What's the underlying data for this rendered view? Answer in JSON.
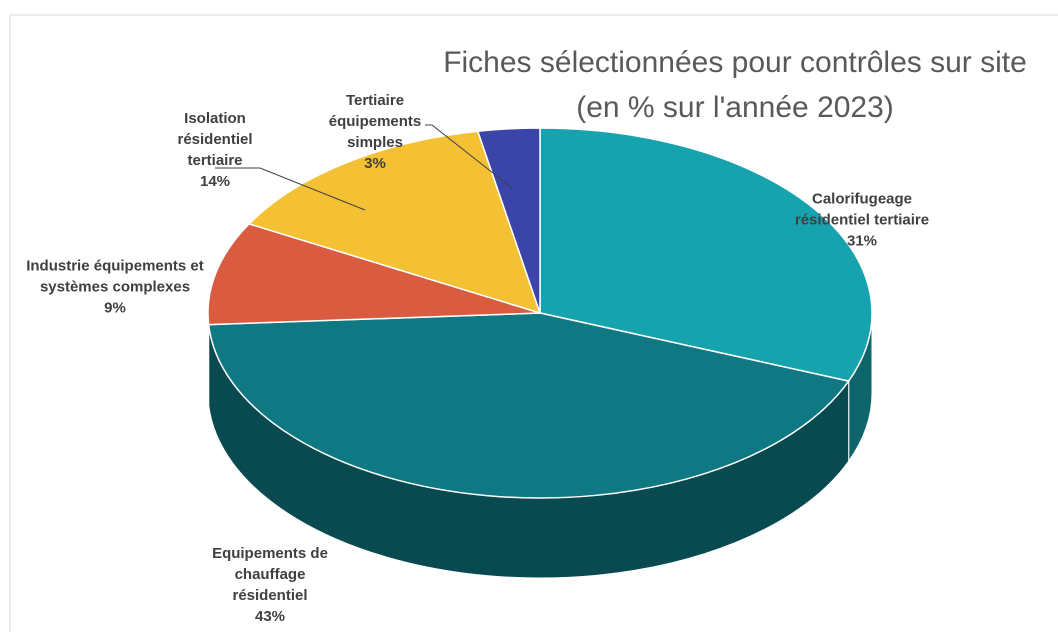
{
  "chart_data": {
    "type": "pie3d",
    "title": "Fiches sélectionnées pour contrôles sur site",
    "subtitle": "(en % sur l'année 2023)",
    "categories": [
      "Calorifugeage résidentiel tertiaire",
      "Equipements de chauffage résidentiel",
      "Industrie équipements et systèmes complexes",
      "Isolation résidentiel tertiaire",
      "Tertiaire équipements simples"
    ],
    "values": [
      31,
      43,
      9,
      14,
      3
    ],
    "value_labels": [
      "31%",
      "43%",
      "9%",
      "14%",
      "3%"
    ],
    "colors": [
      "#17a3ae",
      "#0f7882",
      "#d95b40",
      "#f4c134",
      "#3a44a9"
    ]
  }
}
